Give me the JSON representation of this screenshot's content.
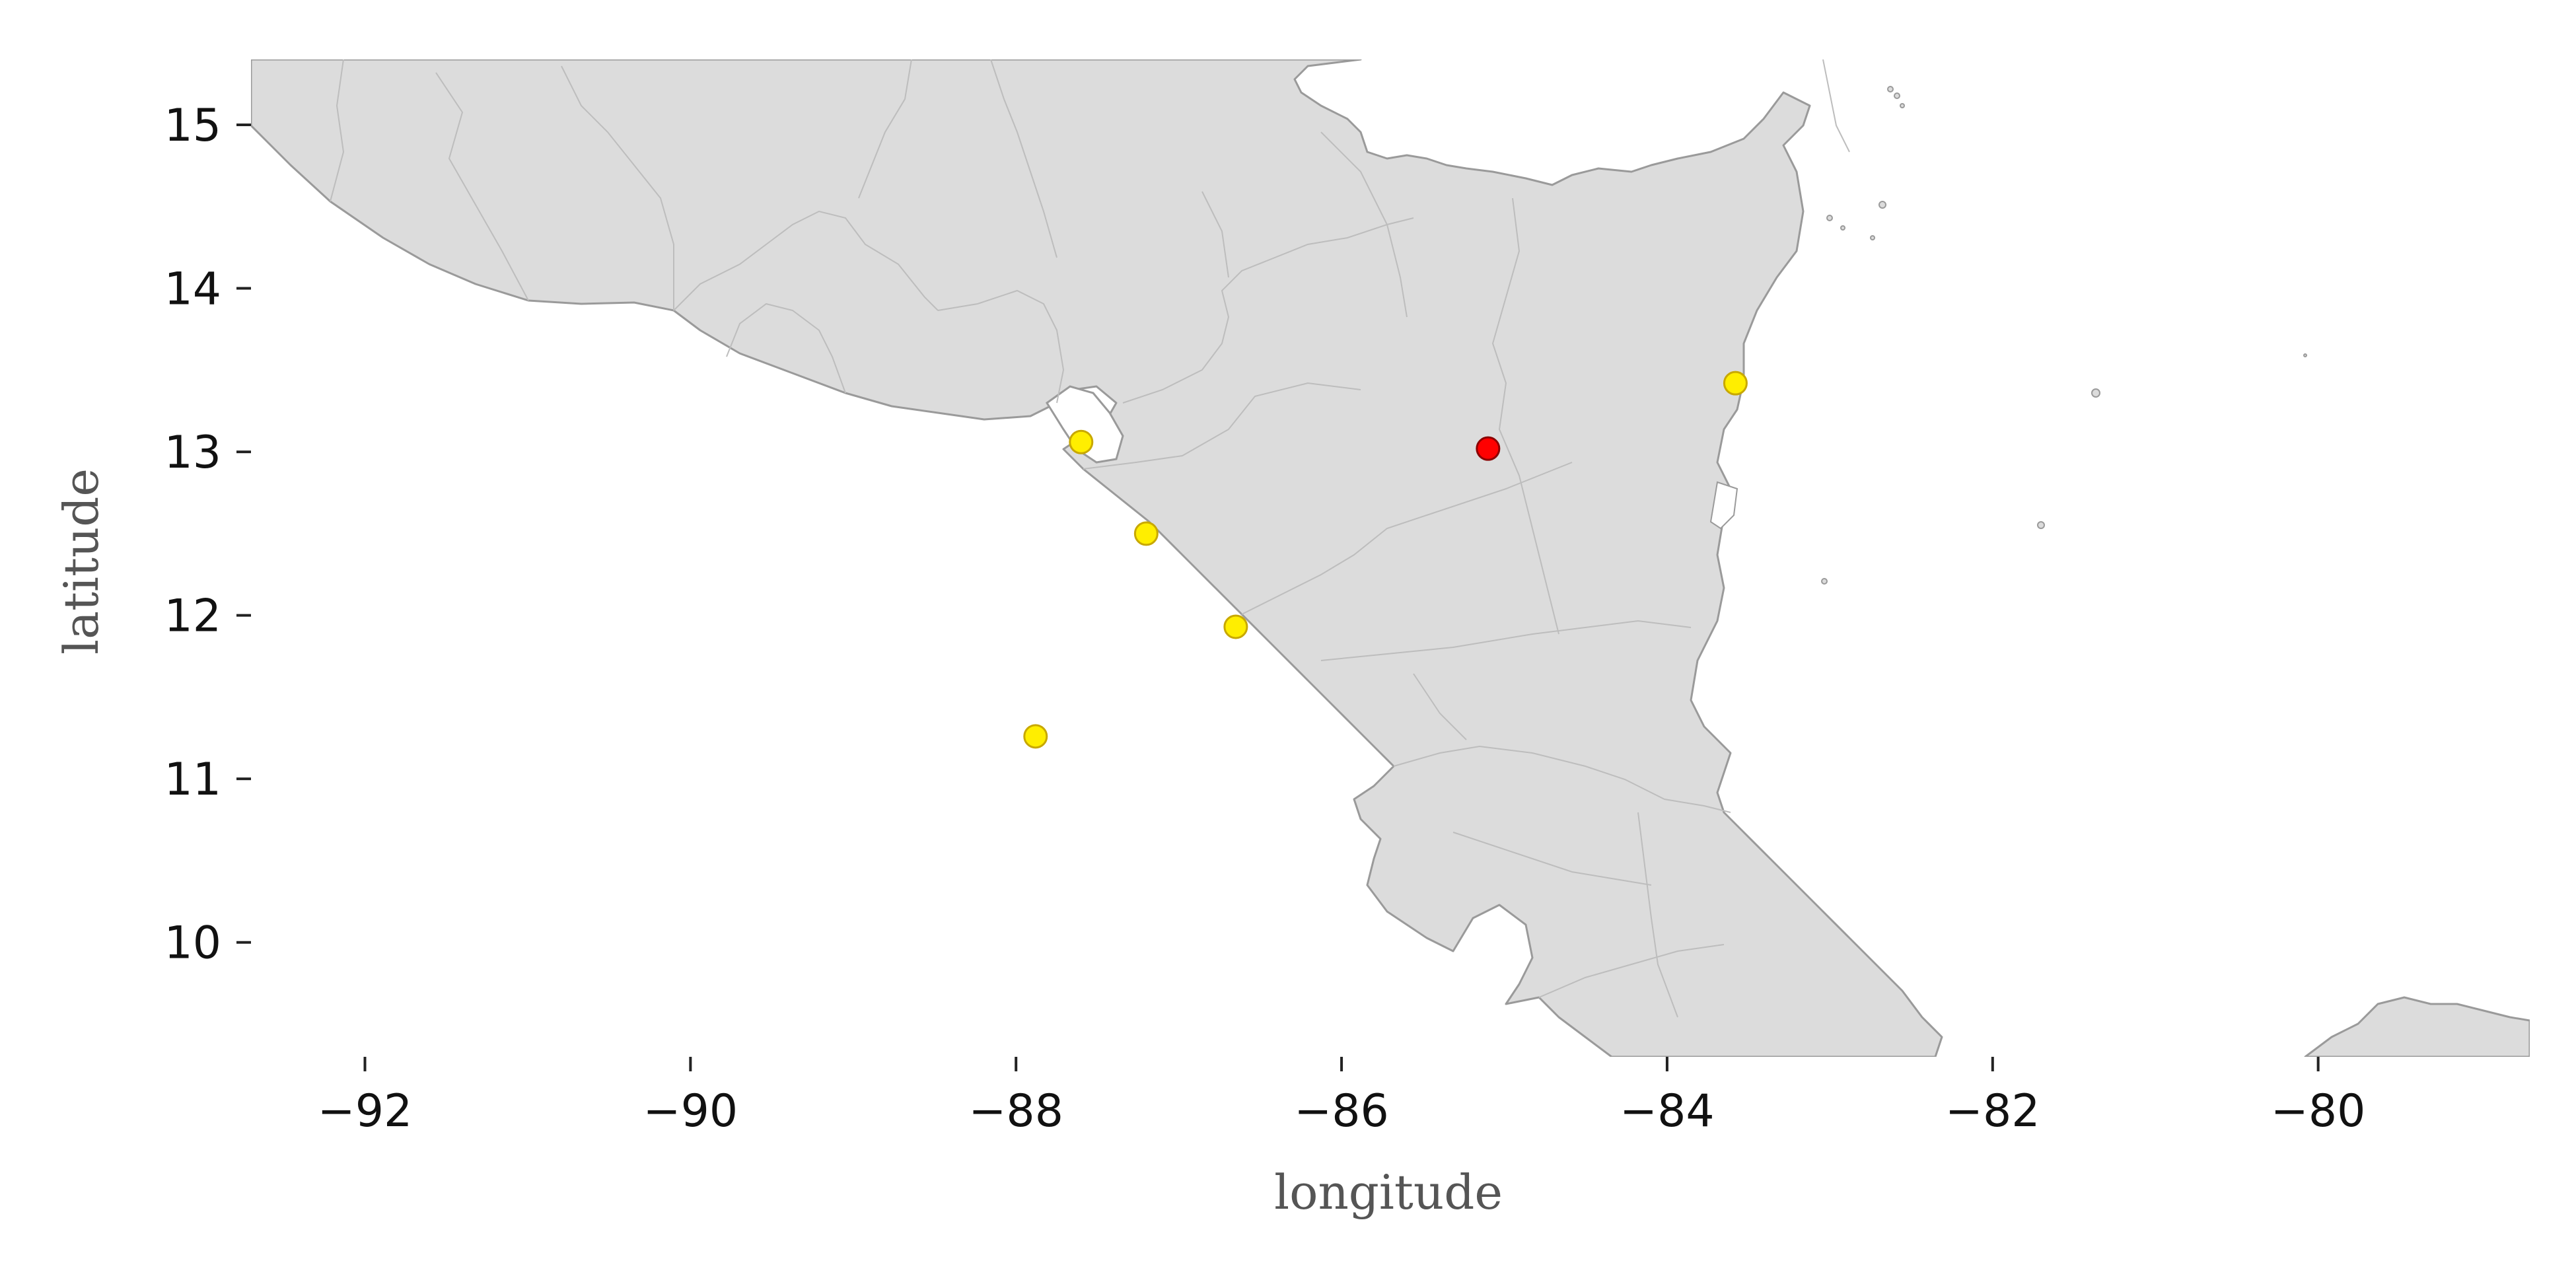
{
  "map": {
    "xlabel": "longitude",
    "ylabel": "latitude",
    "xlim": [
      -92.7,
      -78.7
    ],
    "ylim": [
      9.3,
      15.4
    ],
    "x_ticks": [
      -92,
      -90,
      -88,
      -86,
      -84,
      -82,
      -80
    ],
    "y_ticks": [
      10,
      11,
      12,
      13,
      14,
      15
    ],
    "x_tick_labels": [
      "−92",
      "−90",
      "−88",
      "−86",
      "−84",
      "−82",
      "−80"
    ],
    "y_tick_labels": [
      "10",
      "11",
      "12",
      "13",
      "14",
      "15"
    ],
    "land_color": "#dcdcdc",
    "border_color": "#9a9a9a"
  },
  "markers": [
    {
      "lon": -85.1,
      "lat": 13.02,
      "color": "#ff0000",
      "edge": "#8b0000"
    },
    {
      "lon": -87.6,
      "lat": 13.06,
      "color": "#ffee00",
      "edge": "#c8a800"
    },
    {
      "lon": -87.2,
      "lat": 12.5,
      "color": "#ffee00",
      "edge": "#c8a800"
    },
    {
      "lon": -86.65,
      "lat": 11.93,
      "color": "#ffee00",
      "edge": "#c8a800"
    },
    {
      "lon": -87.88,
      "lat": 11.26,
      "color": "#ffee00",
      "edge": "#c8a800"
    },
    {
      "lon": -83.58,
      "lat": 13.42,
      "color": "#ffee00",
      "edge": "#c8a800"
    }
  ]
}
